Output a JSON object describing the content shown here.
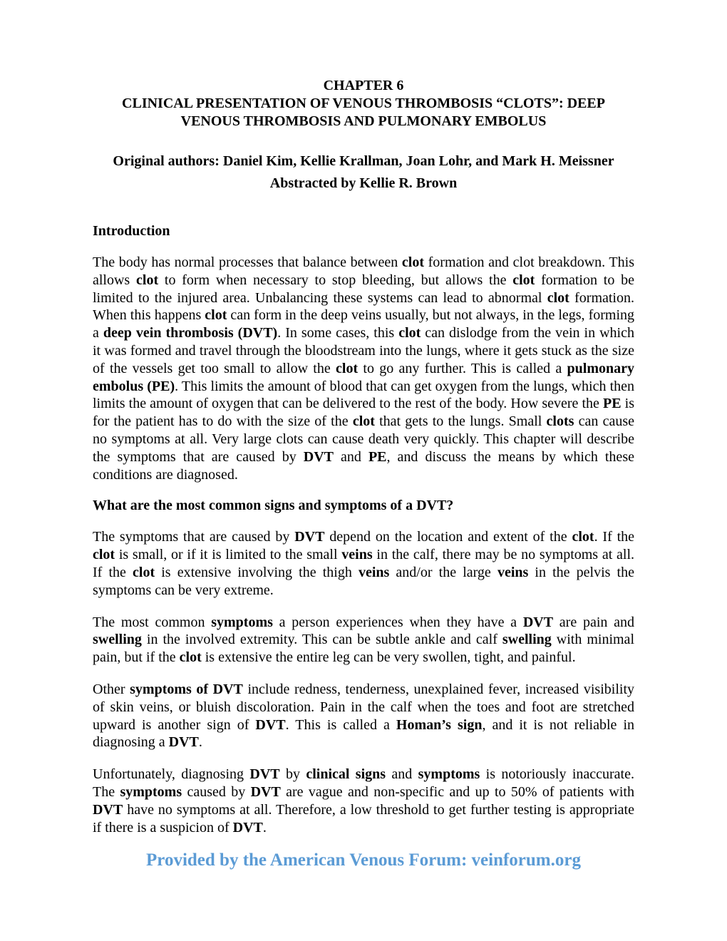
{
  "chapter": {
    "number_line": "CHAPTER 6",
    "title_line1": "CLINICAL PRESENTATION OF VENOUS THROMBOSIS “CLOTS”: DEEP",
    "title_line2": "VENOUS THROMBOSIS AND PULMONARY EMBOLUS"
  },
  "authors": {
    "line1": "Original authors: Daniel Kim, Kellie Krallman, Joan Lohr, and Mark H. Meissner",
    "line2": "Abstracted by Kellie R. Brown"
  },
  "sections": {
    "intro_heading": "Introduction",
    "symptoms_heading": "What are the most common signs and symptoms of a DVT?"
  },
  "body": {
    "intro": {
      "t1": "The body has normal processes that balance between ",
      "b1": "clot",
      "t2": " formation and clot breakdown. This allows ",
      "b2": "clot",
      "t3": " to form when necessary to stop bleeding, but allows the ",
      "b3": "clot",
      "t4": " formation to be limited to the injured area.  Unbalancing these systems can lead to abnormal ",
      "b4": "clot",
      "t5": " formation.  When this happens ",
      "b5": "clot",
      "t6": " can form in the deep veins usually, but not always, in the legs, forming a ",
      "b6": "deep vein thrombosis (DVT)",
      "t7": ".  In some cases, this ",
      "b7": "clot",
      "t8": " can dislodge from the vein in which it was formed and travel through the bloodstream into the lungs, where it gets stuck as the size of the vessels get too small to allow the ",
      "b8": "clot",
      "t9": " to go any further. This is called a ",
      "b9": "pulmonary embolus (PE)",
      "t10": ".  This limits the amount of blood that can get oxygen from the lungs, which then limits the amount of oxygen that can be delivered to the rest of the body.  How severe the ",
      "b10": "PE",
      "t11": " is for the patient has to do with the size of the ",
      "b11": "clot",
      "t12": " that gets to the lungs.   Small ",
      "b12": "clots",
      "t13": " can cause no symptoms at all.  Very large clots can cause death very quickly.   This chapter will describe the symptoms that are caused by ",
      "b13": "DVT",
      "t14": " and ",
      "b14": "PE",
      "t15": ", and discuss the means by which these conditions are diagnosed."
    },
    "p2": {
      "t1": "The symptoms that are caused by ",
      "b1": "DVT",
      "t2": " depend on the location and extent of the ",
      "b2": "clot",
      "t3": ".  If the ",
      "b3": "clot",
      "t4": " is small, or if it is limited to the small ",
      "b4": "veins",
      "t5": " in the calf, there may be no symptoms at all.  If the ",
      "b5": "clot",
      "t6": " is extensive involving the thigh ",
      "b6": "veins",
      "t7": " and/or the large ",
      "b7": "veins",
      "t8": " in the pelvis the symptoms can be very extreme."
    },
    "p3": {
      "t1": "The most common ",
      "b1": "symptoms",
      "t2": " a person experiences when they have a ",
      "b2": "DVT",
      "t3": " are pain and ",
      "b3": "swelling",
      "t4": " in the involved extremity.  This can be subtle ankle and calf ",
      "b4": "swelling",
      "t5": " with minimal pain, but if the ",
      "b5": "clot",
      "t6": " is extensive the entire leg can be very swollen, tight, and painful."
    },
    "p4": {
      "t1": "Other ",
      "b1": "symptoms of DVT",
      "t2": " include redness, tenderness, unexplained fever, increased visibility of skin veins, or bluish discoloration.  Pain in the calf when the toes and foot are stretched upward is another sign of ",
      "b2": "DVT",
      "t3": ".  This is called a ",
      "b3": "Homan’s sign",
      "t4": ", and it is not reliable in diagnosing a ",
      "b4": "DVT",
      "t5": "."
    },
    "p5": {
      "t1": "Unfortunately, diagnosing ",
      "b1": "DVT",
      "t2": " by ",
      "b2": "clinical signs",
      "t3": " and ",
      "b3": "symptoms",
      "t4": " is notoriously inaccurate.  The ",
      "b4": "symptoms",
      "t5": " caused by ",
      "b5": "DVT",
      "t6": " are vague and non-specific and up to 50% of patients with ",
      "b6": "DVT",
      "t7": " have no symptoms at all.  Therefore, a low threshold to get further testing is appropriate if there is a suspicion of ",
      "b7": "DVT",
      "t8": "."
    }
  },
  "footer": {
    "text": "Provided by the American Venous Forum: veinforum.org",
    "color": "#5b9bd5"
  }
}
